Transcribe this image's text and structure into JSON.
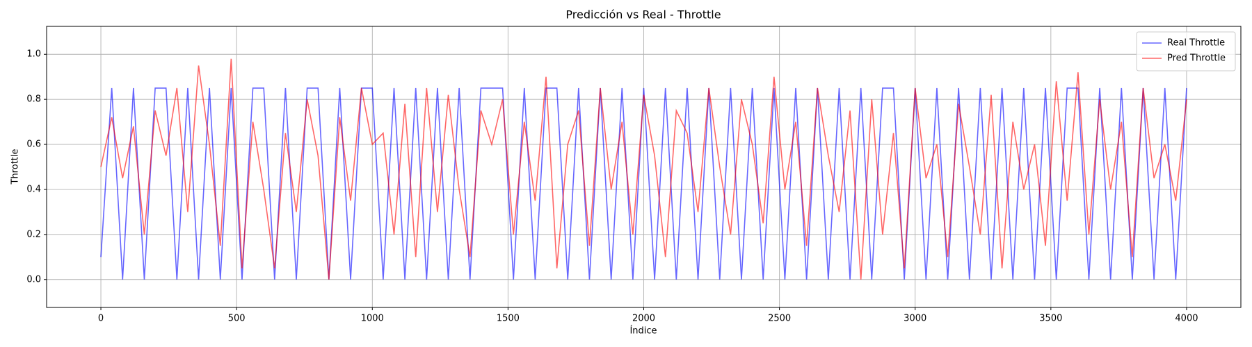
{
  "chart_data": {
    "type": "line",
    "title": "Predicción vs Real - Throttle",
    "x_label": "Índice",
    "y_label": "Throttle",
    "x": [
      0,
      40,
      80,
      120,
      160,
      200,
      240,
      280,
      320,
      360,
      400,
      440,
      480,
      520,
      560,
      600,
      640,
      680,
      720,
      760,
      800,
      840,
      880,
      920,
      960,
      1000,
      1040,
      1080,
      1120,
      1160,
      1200,
      1240,
      1280,
      1320,
      1360,
      1400,
      1440,
      1480,
      1520,
      1560,
      1600,
      1640,
      1680,
      1720,
      1760,
      1800,
      1840,
      1880,
      1920,
      1960,
      2000,
      2040,
      2080,
      2120,
      2160,
      2200,
      2240,
      2280,
      2320,
      2360,
      2400,
      2440,
      2480,
      2520,
      2560,
      2600,
      2640,
      2680,
      2720,
      2760,
      2800,
      2840,
      2880,
      2920,
      2960,
      3000,
      3040,
      3080,
      3120,
      3160,
      3200,
      3240,
      3280,
      3320,
      3360,
      3400,
      3440,
      3480,
      3520,
      3560,
      3600,
      3640,
      3680,
      3720,
      3760,
      3800,
      3840,
      3880,
      3920,
      3960,
      4000
    ],
    "series": [
      {
        "name": "Real Throttle",
        "color": "#0000ff",
        "values": [
          0.1,
          0.85,
          0,
          0.85,
          0,
          0.85,
          0.85,
          0,
          0.85,
          0,
          0.85,
          0,
          0.85,
          0,
          0.85,
          0.85,
          0,
          0.85,
          0,
          0.85,
          0.85,
          0,
          0.85,
          0,
          0.85,
          0.85,
          0,
          0.85,
          0,
          0.85,
          0,
          0.85,
          0,
          0.85,
          0,
          0.85,
          0.85,
          0.85,
          0,
          0.85,
          0,
          0.85,
          0.85,
          0,
          0.85,
          0,
          0.85,
          0,
          0.85,
          0,
          0.85,
          0,
          0.85,
          0,
          0.85,
          0,
          0.85,
          0,
          0.85,
          0,
          0.85,
          0,
          0.85,
          0,
          0.85,
          0,
          0.85,
          0,
          0.85,
          0,
          0.85,
          0,
          0.85,
          0.85,
          0,
          0.85,
          0,
          0.85,
          0,
          0.85,
          0,
          0.85,
          0,
          0.85,
          0,
          0.85,
          0,
          0.85,
          0,
          0.85,
          0.85,
          0,
          0.85,
          0,
          0.85,
          0,
          0.85,
          0,
          0.85,
          0,
          0.85
        ]
      },
      {
        "name": "Pred Throttle",
        "color": "#ff0000",
        "values": [
          0.5,
          0.72,
          0.45,
          0.68,
          0.2,
          0.75,
          0.55,
          0.85,
          0.3,
          0.95,
          0.6,
          0.15,
          0.98,
          0.05,
          0.7,
          0.4,
          0.05,
          0.65,
          0.3,
          0.8,
          0.55,
          0.0,
          0.72,
          0.35,
          0.85,
          0.6,
          0.65,
          0.2,
          0.78,
          0.1,
          0.85,
          0.3,
          0.82,
          0.4,
          0.1,
          0.75,
          0.6,
          0.8,
          0.2,
          0.7,
          0.35,
          0.9,
          0.05,
          0.6,
          0.75,
          0.15,
          0.85,
          0.4,
          0.7,
          0.2,
          0.82,
          0.55,
          0.1,
          0.75,
          0.65,
          0.3,
          0.85,
          0.5,
          0.2,
          0.8,
          0.6,
          0.25,
          0.9,
          0.4,
          0.7,
          0.15,
          0.85,
          0.55,
          0.3,
          0.75,
          0.0,
          0.8,
          0.2,
          0.65,
          0.05,
          0.85,
          0.45,
          0.6,
          0.1,
          0.78,
          0.5,
          0.2,
          0.82,
          0.05,
          0.7,
          0.4,
          0.6,
          0.15,
          0.88,
          0.35,
          0.92,
          0.2,
          0.8,
          0.4,
          0.7,
          0.1,
          0.85,
          0.45,
          0.6,
          0.35,
          0.8
        ]
      }
    ],
    "opacity": 0.6,
    "xlim": [
      -200,
      4200
    ],
    "xticks": [
      0,
      500,
      1000,
      1500,
      2000,
      2500,
      3000,
      3500,
      4000
    ],
    "ylim": [
      -0.124,
      1.124
    ],
    "yticks": [
      {
        "value": 0,
        "label": "0.0"
      },
      0.2,
      0.4,
      0.6,
      0.8,
      {
        "value": 1,
        "label": "1.0"
      }
    ],
    "grid": true,
    "legend": "upper right"
  }
}
